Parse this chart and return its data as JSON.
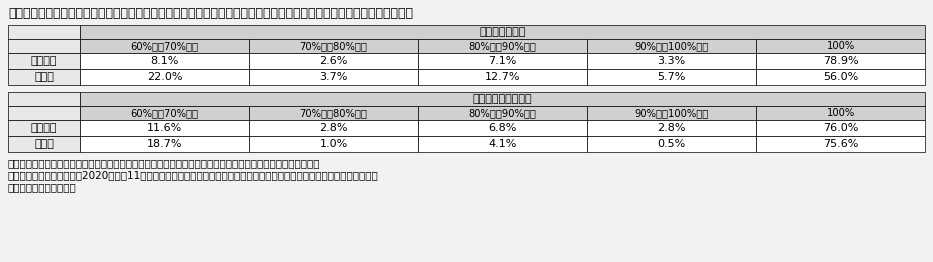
{
  "title": "付１－（６）－３表　雇用調整助成金・緊急雇用安定助成金における休業手当支払率ごとの支給決定件数の割合（休業）",
  "table1_header_main": "雇用調整助成金",
  "table2_header_main": "緊急雇用安定助成金",
  "col_headers": [
    "60%以上70%未満",
    "70%以上80%未満",
    "80%以上90%未満",
    "90%以上100%未満",
    "100%"
  ],
  "row_headers": [
    "中小企業",
    "大企業"
  ],
  "table1_data": [
    [
      "8.1%",
      "2.6%",
      "7.1%",
      "3.3%",
      "78.9%"
    ],
    [
      "22.0%",
      "3.7%",
      "12.7%",
      "5.7%",
      "56.0%"
    ]
  ],
  "table2_data": [
    [
      "11.6%",
      "2.8%",
      "6.8%",
      "2.8%",
      "76.0%"
    ],
    [
      "18.7%",
      "1.0%",
      "4.1%",
      "0.5%",
      "75.6%"
    ]
  ],
  "note_line1": "資料出所　厚生労働省職業安定局が実施したサンプル調査をもとに厚生労働省政策統括官付政策統括室にて作成",
  "note_line2": "（注）　サンプル調査は、2020年５～11月の間に支給決定したものについてサンプル調査を実施。休業手当支払率が不明なも",
  "note_line3": "　　　のを除いている。",
  "bg_color": "#f2f2f2",
  "header_bg": "#d0d0d0",
  "subheader_bg": "#d0d0d0",
  "rowheader_bg": "#e8e8e8",
  "cell_bg": "#ffffff",
  "border_color": "#000000",
  "font_size": 8.0,
  "title_font_size": 9.0,
  "note_font_size": 7.5
}
